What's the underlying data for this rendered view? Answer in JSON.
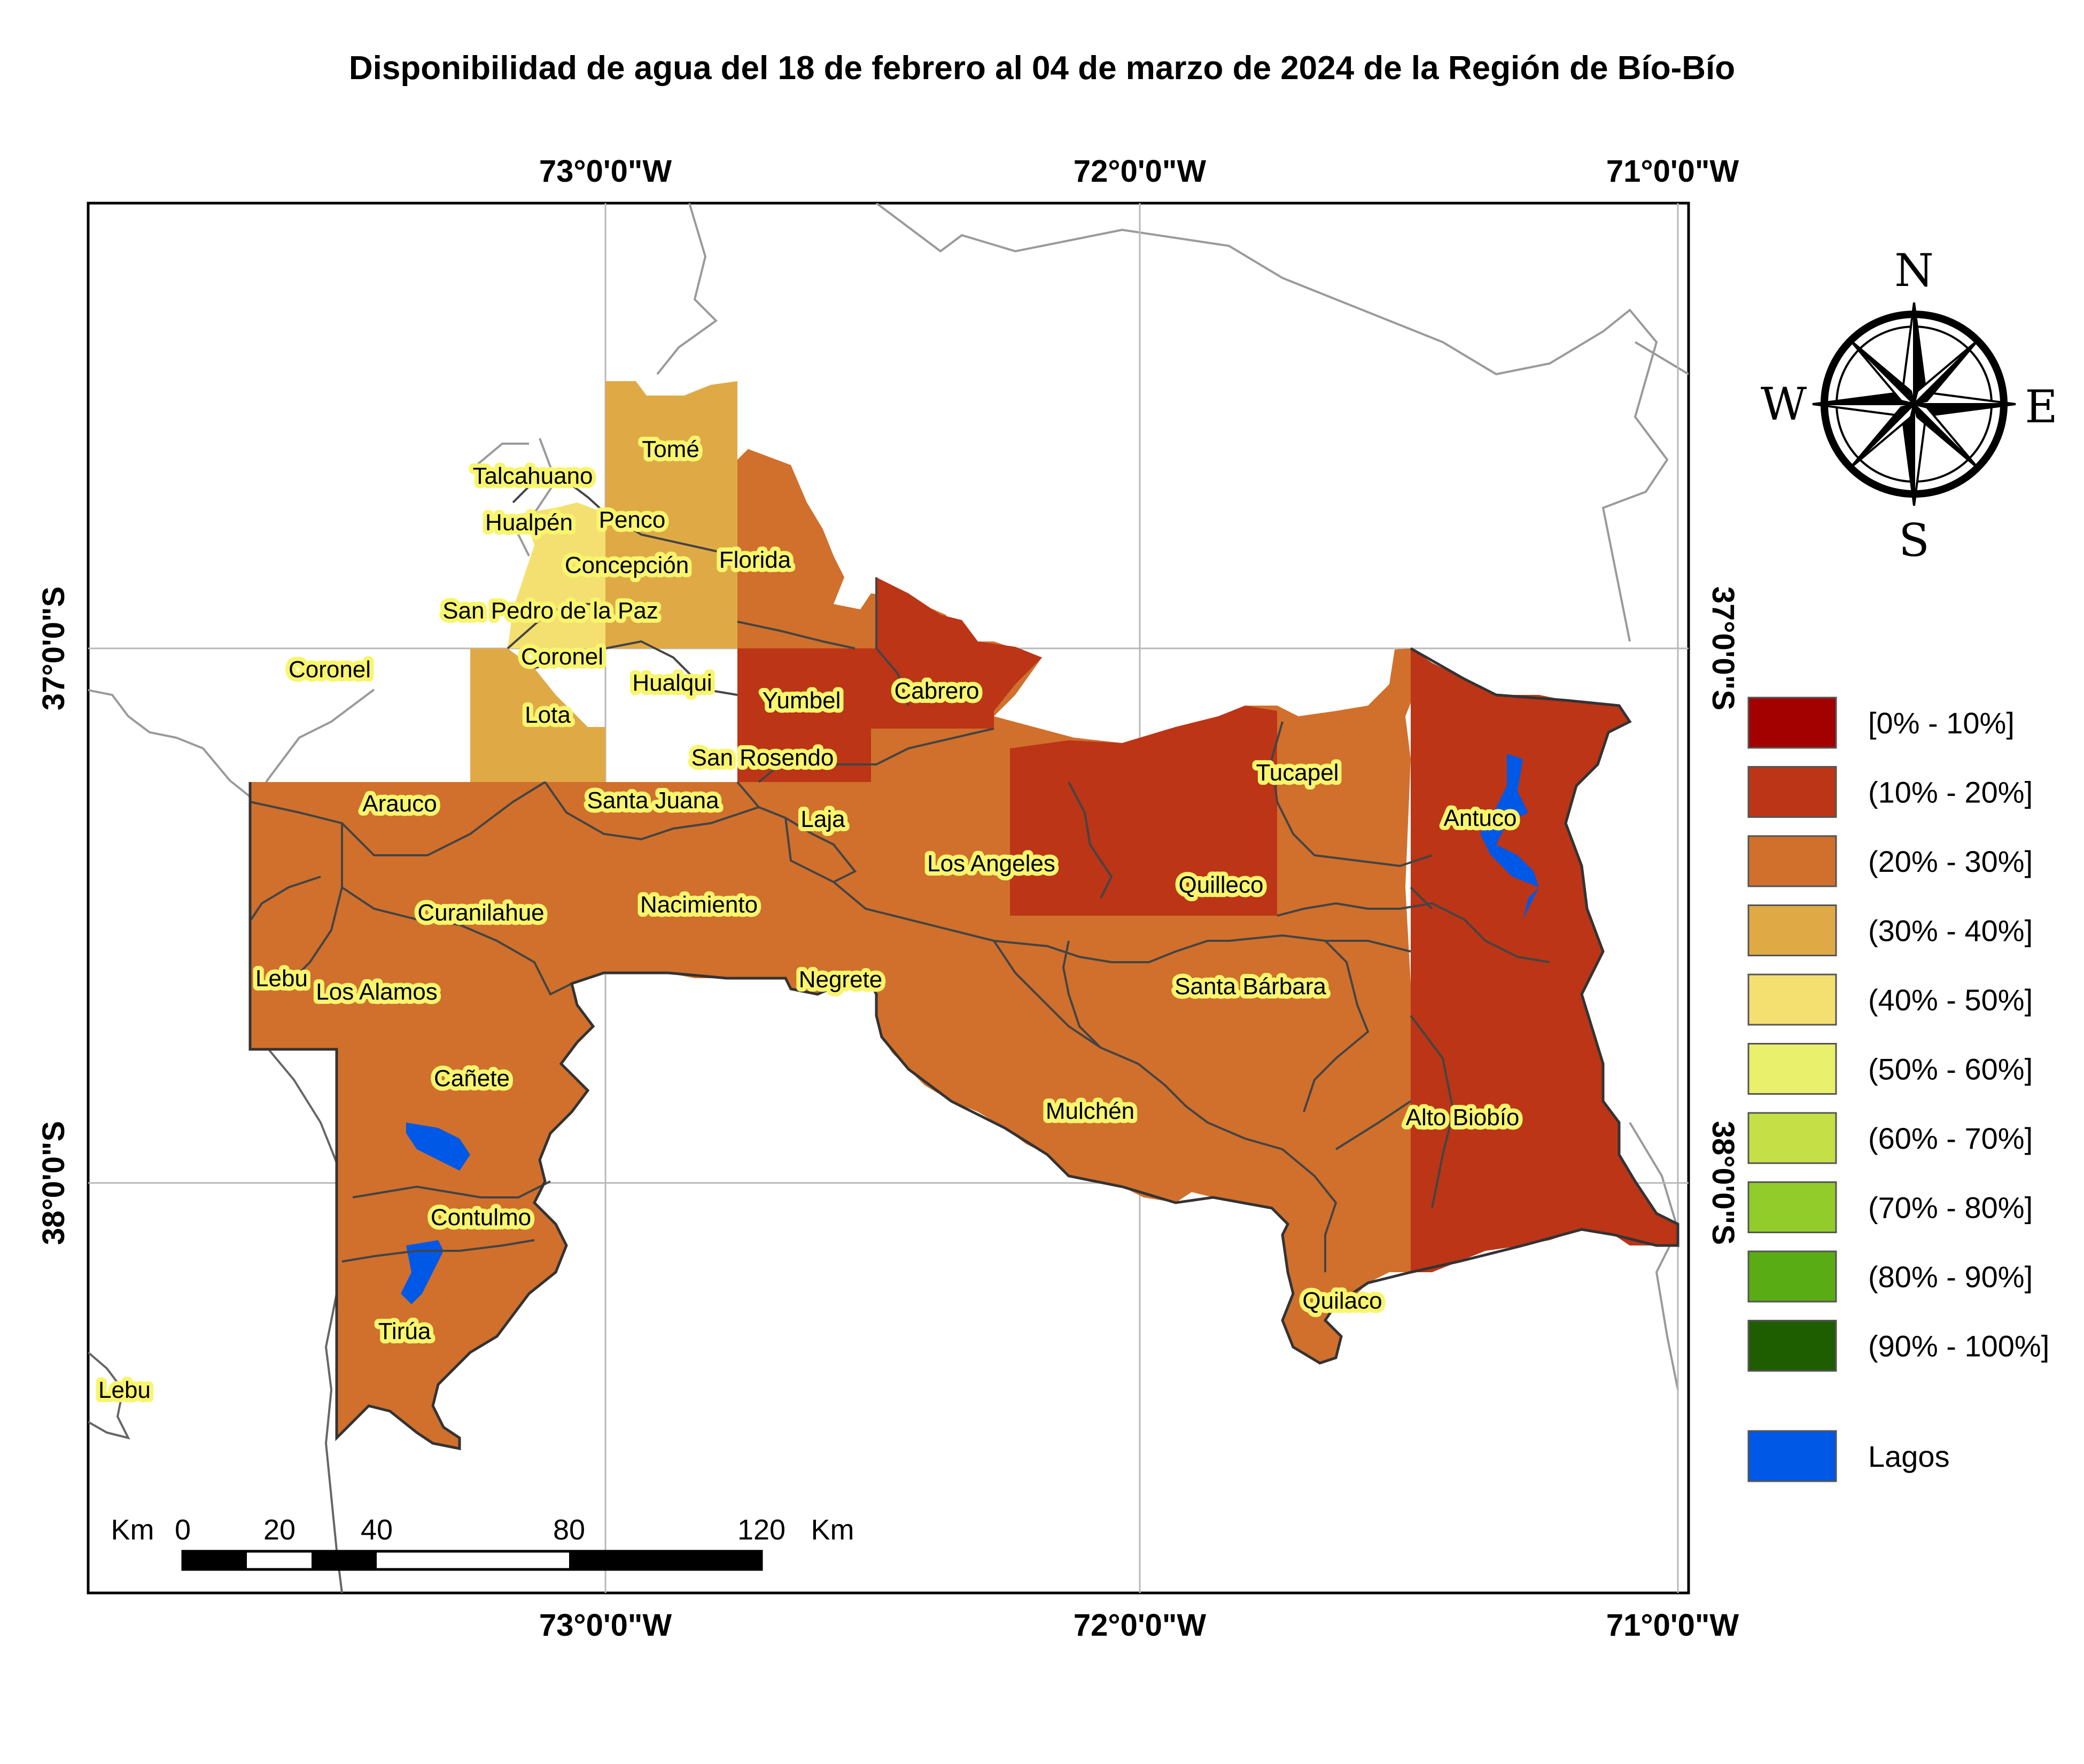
{
  "title": "Disponibilidad de agua del 18 de febrero al 04 de marzo de 2024 de la Región de Bío-Bío",
  "longitude_labels": [
    "73°0'0\"W",
    "72°0'0\"W",
    "71°0'0\"W"
  ],
  "latitude_labels": [
    "37°0'0\"S",
    "38°0'0\"S"
  ],
  "compass": {
    "north": "N",
    "south": "S",
    "east": "E",
    "west": "W",
    "icon": "compass-rose-icon"
  },
  "legend": [
    {
      "label": "[0% - 10%]",
      "color": "#a30000"
    },
    {
      "label": "(10% - 20%]",
      "color": "#bb3516"
    },
    {
      "label": "(20% - 30%]",
      "color": "#d0702c"
    },
    {
      "label": "(30% - 40%]",
      "color": "#dfaa46"
    },
    {
      "label": "(40% - 50%]",
      "color": "#f3e070"
    },
    {
      "label": "(50% - 60%]",
      "color": "#e8f06c"
    },
    {
      "label": "(60% - 70%]",
      "color": "#c5e046"
    },
    {
      "label": "(70% - 80%]",
      "color": "#92cc2a"
    },
    {
      "label": "(80% - 90%]",
      "color": "#5aac14"
    },
    {
      "label": "(90% - 100%]",
      "color": "#1e5e00"
    }
  ],
  "lakes_legend": {
    "label": "Lagos",
    "color": "#0058e6"
  },
  "scale_bar": {
    "unit_left": "Km",
    "unit_right": "Km",
    "ticks": [
      "0",
      "20",
      "40",
      "80",
      "120"
    ]
  },
  "places": [
    "Tomé",
    "Talcahuano",
    "Hualpén",
    "Penco",
    "Concepción",
    "Florida",
    "San Pedro de la Paz",
    "Coronel",
    "Coronel",
    "Hualqui",
    "Yumbel",
    "Cabrero",
    "Lota",
    "San Rosendo",
    "Tucapel",
    "Antuco",
    "Arauco",
    "Santa Juana",
    "Laja",
    "Los Angeles",
    "Quilleco",
    "Curanilahue",
    "Nacimiento",
    "Lebu",
    "Los Alamos",
    "Negrete",
    "Santa Bárbara",
    "Cañete",
    "Mulchén",
    "Alto Biobío",
    "Contulmo",
    "Quilaco",
    "Tirúa",
    "Lebu"
  ]
}
